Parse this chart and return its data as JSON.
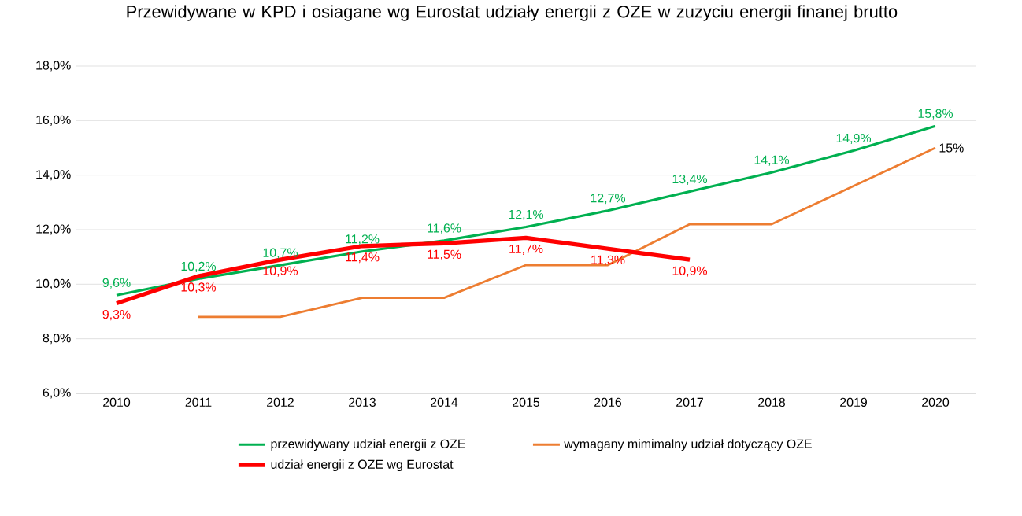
{
  "chart_data": {
    "type": "line",
    "title": "Przewidywane w KPD i osiagane wg Eurostat udziały energii z OZE w zuzyciu energii finanej brutto",
    "categories": [
      "2010",
      "2011",
      "2012",
      "2013",
      "2014",
      "2015",
      "2016",
      "2017",
      "2018",
      "2019",
      "2020"
    ],
    "series": [
      {
        "name": "przewidywany udział energii z OZE",
        "color": "#00b050",
        "values": [
          9.6,
          10.2,
          10.7,
          11.2,
          11.6,
          12.1,
          12.7,
          13.4,
          14.1,
          14.9,
          15.8
        ],
        "value_labels": [
          "9,6%",
          "10,2%",
          "10,7%",
          "11,2%",
          "11,6%",
          "12,1%",
          "12,7%",
          "13,4%",
          "14,1%",
          "14,9%",
          "15,8%"
        ]
      },
      {
        "name": "wymagany mimimalny udział dotyczący OZE",
        "color": "#ed7d31",
        "values": [
          null,
          8.8,
          8.8,
          9.5,
          9.5,
          10.7,
          10.7,
          12.2,
          12.2,
          13.6,
          15.0
        ],
        "value_labels": [
          null,
          null,
          null,
          null,
          null,
          null,
          null,
          null,
          null,
          null,
          "15%"
        ]
      },
      {
        "name": "udział energii z OZE wg Eurostat",
        "color": "#ff0000",
        "values": [
          9.3,
          10.3,
          10.9,
          11.4,
          11.5,
          11.7,
          11.3,
          10.9,
          null,
          null,
          null
        ],
        "value_labels": [
          "9,3%",
          "10,3%",
          "10,9%",
          "11,4%",
          "11,5%",
          "11,7%",
          "11,3%",
          "10,9%",
          null,
          null,
          null
        ]
      }
    ],
    "ylim": [
      6,
      18
    ],
    "yticks": [
      {
        "value": 6,
        "label": "6,0%"
      },
      {
        "value": 8,
        "label": "8,0%"
      },
      {
        "value": 10,
        "label": "10,0%"
      },
      {
        "value": 12,
        "label": "12,0%"
      },
      {
        "value": 14,
        "label": "14,0%"
      },
      {
        "value": 16,
        "label": "16,0%"
      },
      {
        "value": 18,
        "label": "18,0%"
      }
    ],
    "grid": "y",
    "legend": "bottom",
    "line_style": "solid",
    "marker": "none"
  }
}
